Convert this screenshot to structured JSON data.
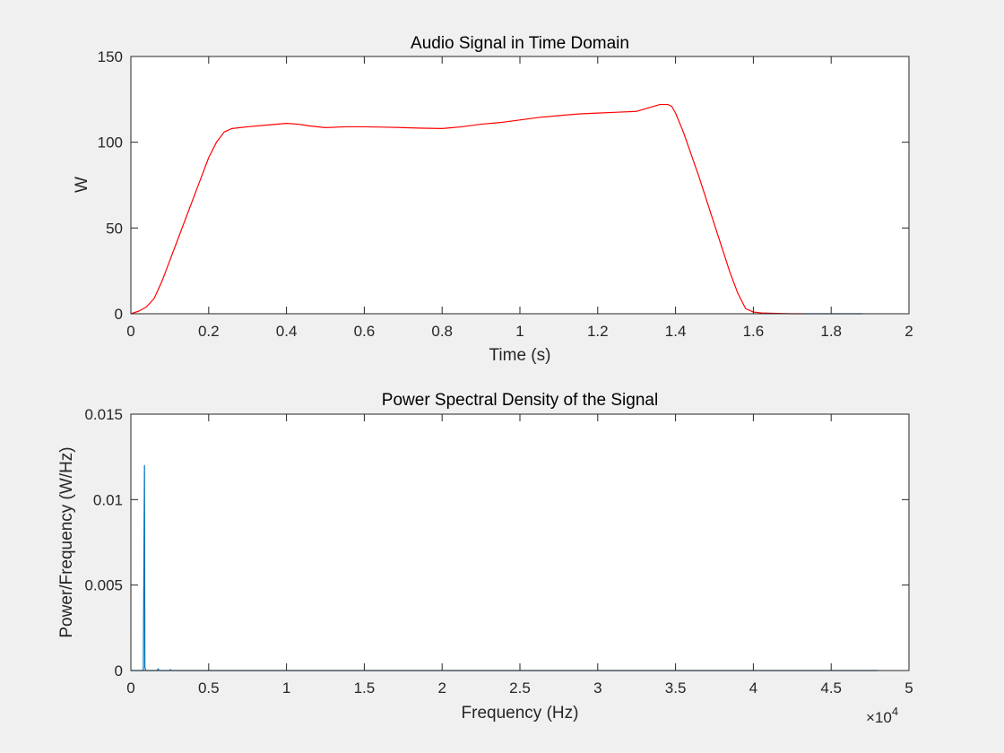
{
  "chart_data": [
    {
      "type": "line",
      "title": "Audio Signal in Time Domain",
      "xlabel": "Time (s)",
      "ylabel": "W",
      "xlim": [
        0,
        2
      ],
      "ylim": [
        0,
        150
      ],
      "xticks": [
        0,
        0.2,
        0.4,
        0.6,
        0.8,
        1,
        1.2,
        1.4,
        1.6,
        1.8,
        2
      ],
      "xtick_labels": [
        "0",
        "0.2",
        "0.4",
        "0.6",
        "0.8",
        "1",
        "1.2",
        "1.4",
        "1.6",
        "1.8",
        "2"
      ],
      "yticks": [
        0,
        50,
        100,
        150
      ],
      "ytick_labels": [
        "0",
        "50",
        "100",
        "150"
      ],
      "grid": false,
      "series": [
        {
          "color": "#ff0000",
          "x": [
            0,
            0.02,
            0.04,
            0.06,
            0.08,
            0.1,
            0.12,
            0.14,
            0.16,
            0.18,
            0.2,
            0.22,
            0.24,
            0.26,
            0.28,
            0.3,
            0.35,
            0.4,
            0.43,
            0.46,
            0.5,
            0.55,
            0.6,
            0.65,
            0.7,
            0.75,
            0.8,
            0.85,
            0.9,
            0.95,
            1.0,
            1.05,
            1.1,
            1.15,
            1.2,
            1.25,
            1.3,
            1.33,
            1.36,
            1.38,
            1.39,
            1.4,
            1.42,
            1.44,
            1.46,
            1.48,
            1.5,
            1.52,
            1.54,
            1.56,
            1.58,
            1.6,
            1.62,
            1.65,
            1.7,
            1.73
          ],
          "y": [
            0,
            1.5,
            4,
            9,
            19,
            31,
            43,
            55,
            67,
            79,
            91,
            100,
            106,
            108,
            108.5,
            109,
            110,
            111,
            110.5,
            109.5,
            108.5,
            109,
            109,
            108.8,
            108.5,
            108.2,
            108,
            109,
            110.5,
            111.5,
            113,
            114.5,
            115.5,
            116.5,
            117,
            117.5,
            118,
            120,
            122,
            122,
            121,
            117,
            106,
            93,
            80,
            66,
            52,
            38,
            24,
            12,
            3,
            1,
            0.5,
            0.3,
            0,
            0
          ]
        },
        {
          "color": "#0072bd",
          "x": [
            1.73,
            1.8,
            1.88
          ],
          "y": [
            0,
            0,
            0
          ]
        }
      ]
    },
    {
      "type": "line",
      "title": "Power Spectral Density of the Signal",
      "xlabel": "Frequency (Hz)",
      "ylabel": "Power/Frequency (W/Hz)",
      "x_exponent_base": "×10",
      "x_exponent_power": "4",
      "xlim": [
        0,
        5
      ],
      "ylim": [
        0,
        0.015
      ],
      "xticks": [
        0,
        0.5,
        1,
        1.5,
        2,
        2.5,
        3,
        3.5,
        4,
        4.5,
        5
      ],
      "xtick_labels": [
        "0",
        "0.5",
        "1",
        "1.5",
        "2",
        "2.5",
        "3",
        "3.5",
        "4",
        "4.5",
        "5"
      ],
      "yticks": [
        0,
        0.005,
        0.01,
        0.015
      ],
      "ytick_labels": [
        "0",
        "0.005",
        "0.01",
        "0.015"
      ],
      "grid": false,
      "series": [
        {
          "color": "#0072bd",
          "x": [
            0,
            0.08,
            0.085,
            0.0875,
            0.09,
            0.095,
            0.1,
            0.15,
            0.17,
            0.175,
            0.18,
            0.2,
            0.25,
            0.255,
            0.26,
            0.3,
            1,
            2,
            3,
            4,
            4.8
          ],
          "y": [
            0,
            0,
            0.0085,
            0.012,
            0.0002,
            0,
            0,
            0,
            0,
            0.0001,
            0,
            0,
            0,
            5e-05,
            0,
            0,
            0,
            0,
            0,
            0,
            0
          ]
        }
      ]
    }
  ]
}
